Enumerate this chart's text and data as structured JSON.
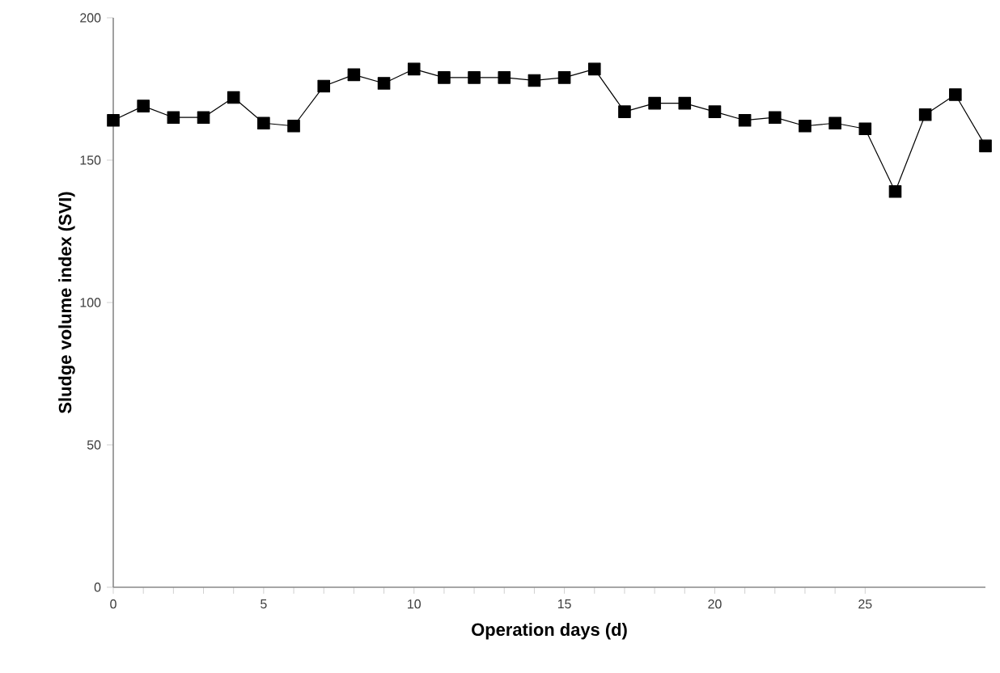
{
  "chart_data": {
    "type": "line",
    "xlabel": "Operation days (d)",
    "ylabel": "Sludge volume index (SVI)",
    "x": [
      0,
      1,
      2,
      3,
      4,
      5,
      6,
      7,
      8,
      9,
      10,
      11,
      12,
      13,
      14,
      15,
      16,
      17,
      18,
      19,
      20,
      21,
      22,
      23,
      24,
      25,
      26,
      27,
      28,
      29
    ],
    "series": [
      {
        "color": "#000000",
        "values": [
          164,
          169,
          165,
          165,
          172,
          163,
          162,
          176,
          180,
          177,
          182,
          179,
          179,
          179,
          178,
          179,
          182,
          167,
          170,
          170,
          167,
          164,
          165,
          162,
          163,
          161,
          139,
          166,
          173,
          155
        ]
      }
    ],
    "xlim": [
      0,
      29
    ],
    "xticks": [
      0,
      5,
      10,
      15,
      20,
      25
    ],
    "ylim": [
      0,
      200
    ],
    "yticks": [
      0,
      50,
      100,
      150,
      200
    ],
    "marker": "square",
    "line_style": "solid"
  }
}
